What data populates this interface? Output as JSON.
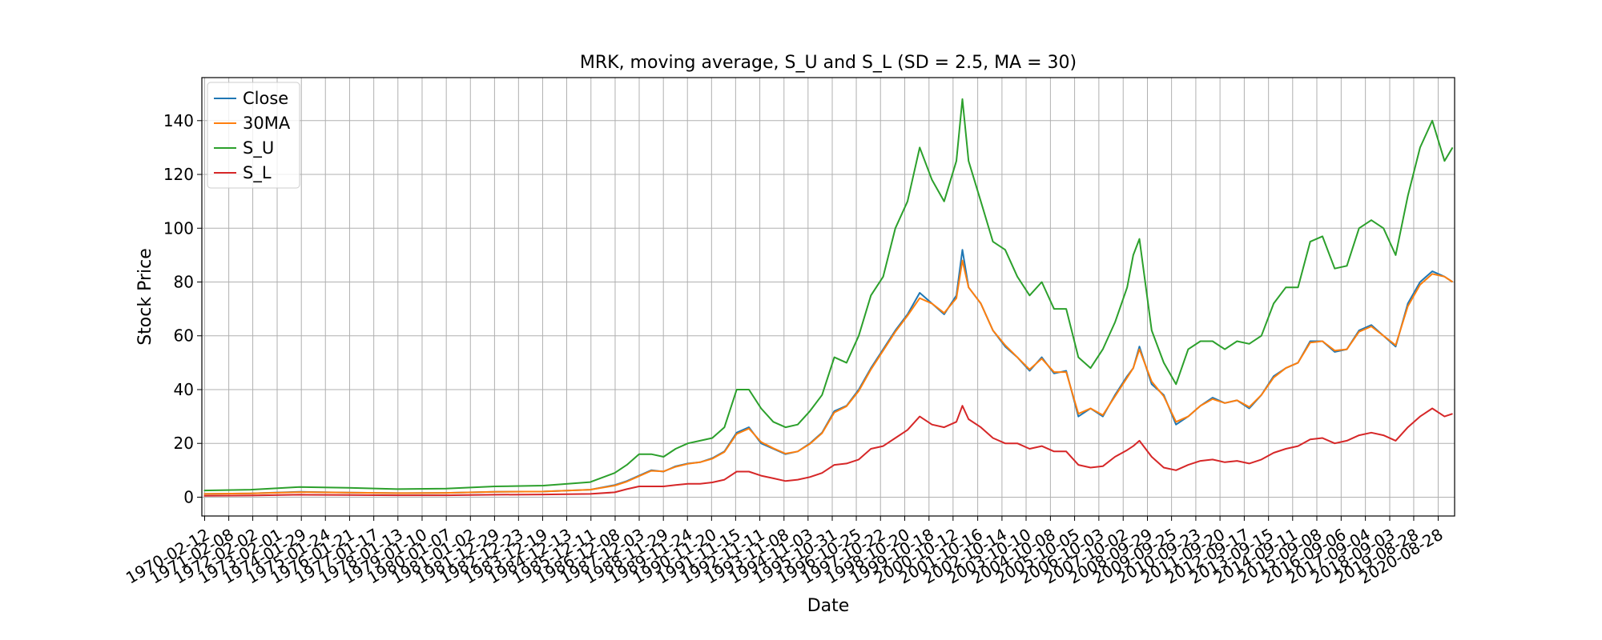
{
  "chart_data": {
    "type": "line",
    "title": "MRK, moving average, S_U and S_L (SD = 2.5, MA = 30)",
    "xlabel": "Date",
    "ylabel": "Stock Price",
    "ylim": [
      -7,
      156
    ],
    "yticks": [
      0,
      20,
      40,
      60,
      80,
      100,
      120,
      140
    ],
    "xlim": [
      "1970-01-01",
      "2021-05-01"
    ],
    "xticks": [
      "1970-02-12",
      "1971-02-08",
      "1972-02-02",
      "1973-02-01",
      "1974-01-29",
      "1975-01-24",
      "1976-01-21",
      "1977-01-17",
      "1978-01-13",
      "1979-01-10",
      "1980-01-07",
      "1981-01-02",
      "1981-12-29",
      "1982-12-23",
      "1983-12-19",
      "1984-12-13",
      "1985-12-11",
      "1986-12-08",
      "1987-12-03",
      "1988-11-29",
      "1989-11-24",
      "1990-11-20",
      "1991-11-15",
      "1992-11-11",
      "1993-11-08",
      "1994-11-03",
      "1995-10-31",
      "1996-10-25",
      "1997-10-22",
      "1998-10-20",
      "1999-10-18",
      "2000-10-12",
      "2001-10-16",
      "2002-10-14",
      "2003-10-10",
      "2004-10-08",
      "2005-10-05",
      "2006-10-03",
      "2007-10-02",
      "2008-09-29",
      "2009-09-25",
      "2010-09-23",
      "2011-09-20",
      "2012-09-17",
      "2013-09-15",
      "2014-09-11",
      "2015-09-08",
      "2016-09-06",
      "2017-09-04",
      "2018-09-03",
      "2019-08-28",
      "2020-08-28"
    ],
    "grid": true,
    "legend_position": "top-left",
    "series": [
      {
        "name": "Close",
        "color": "#1f77b4"
      },
      {
        "name": "30MA",
        "color": "#ff7f0e"
      },
      {
        "name": "S_U",
        "color": "#2ca02c"
      },
      {
        "name": "S_L",
        "color": "#d62728"
      }
    ],
    "x": [
      "1970-02",
      "1972-01",
      "1974-01",
      "1976-01",
      "1978-01",
      "1980-01",
      "1982-01",
      "1984-01",
      "1985-12",
      "1986-12",
      "1987-06",
      "1987-12",
      "1988-06",
      "1988-12",
      "1989-06",
      "1989-12",
      "1990-06",
      "1990-12",
      "1991-06",
      "1991-12",
      "1992-06",
      "1992-12",
      "1993-06",
      "1993-12",
      "1994-06",
      "1994-12",
      "1995-06",
      "1995-12",
      "1996-06",
      "1996-12",
      "1997-06",
      "1997-12",
      "1998-06",
      "1998-12",
      "1999-06",
      "1999-12",
      "2000-06",
      "2000-12",
      "2001-03",
      "2001-06",
      "2001-12",
      "2002-06",
      "2002-12",
      "2003-06",
      "2003-12",
      "2004-06",
      "2004-12",
      "2005-06",
      "2005-12",
      "2006-06",
      "2006-12",
      "2007-06",
      "2007-12",
      "2008-03",
      "2008-06",
      "2008-12",
      "2009-06",
      "2009-12",
      "2010-06",
      "2010-12",
      "2011-06",
      "2011-12",
      "2012-06",
      "2012-12",
      "2013-06",
      "2013-12",
      "2014-06",
      "2014-12",
      "2015-06",
      "2015-12",
      "2016-06",
      "2016-12",
      "2017-06",
      "2017-12",
      "2018-06",
      "2018-12",
      "2019-06",
      "2019-12",
      "2020-06",
      "2020-12",
      "2021-04"
    ],
    "close": [
      1.2,
      1.4,
      2.0,
      1.7,
      1.5,
      1.6,
      2.0,
      2.1,
      2.8,
      4.5,
      6.0,
      8.0,
      10.0,
      9.5,
      11.5,
      12.5,
      13.0,
      14.5,
      17.0,
      24.0,
      26.0,
      20.0,
      18.0,
      16.0,
      17.0,
      20.0,
      24.0,
      32.0,
      34.0,
      40.0,
      48.0,
      55.0,
      62.0,
      68.0,
      76.0,
      72.0,
      68.0,
      75.0,
      92.0,
      78.0,
      72.0,
      62.0,
      56.0,
      52.0,
      47.0,
      52.0,
      46.0,
      47.0,
      30.0,
      33.0,
      30.0,
      38.0,
      45.0,
      48.0,
      56.0,
      42.0,
      38.0,
      27.0,
      30.0,
      34.0,
      37.0,
      35.0,
      36.0,
      33.0,
      38.0,
      45.0,
      48.0,
      50.0,
      58.0,
      58.0,
      54.0,
      55.0,
      62.0,
      64.0,
      60.0,
      56.0,
      72.0,
      80.0,
      84.0,
      82.0,
      80.0
    ],
    "ma30": [
      1.2,
      1.4,
      1.9,
      1.7,
      1.5,
      1.6,
      2.0,
      2.1,
      2.8,
      4.3,
      5.8,
      7.8,
      9.8,
      9.6,
      11.3,
      12.4,
      13.0,
      14.3,
      16.8,
      23.5,
      25.5,
      20.5,
      18.2,
      16.2,
      17.0,
      19.8,
      23.8,
      31.5,
      33.8,
      39.5,
      47.5,
      54.5,
      61.5,
      67.5,
      74.0,
      72.0,
      68.5,
      74.0,
      88.0,
      78.0,
      72.0,
      62.0,
      56.5,
      52.0,
      47.5,
      51.5,
      46.5,
      46.5,
      31.0,
      33.0,
      30.5,
      37.5,
      44.5,
      48.0,
      55.0,
      43.0,
      37.5,
      28.0,
      30.0,
      34.0,
      36.5,
      35.0,
      36.0,
      33.5,
      38.0,
      44.5,
      48.0,
      50.0,
      57.5,
      58.0,
      54.5,
      55.0,
      61.5,
      63.5,
      60.0,
      56.5,
      71.0,
      79.0,
      83.0,
      82.0,
      80.0
    ],
    "s_u": [
      2.5,
      2.8,
      3.8,
      3.5,
      3.0,
      3.2,
      4.0,
      4.3,
      5.6,
      9.0,
      12.0,
      16.0,
      16.0,
      15.0,
      18.0,
      20.0,
      21.0,
      22.0,
      26.0,
      40.0,
      40.0,
      33.0,
      28.0,
      26.0,
      27.0,
      32.0,
      38.0,
      52.0,
      50.0,
      60.0,
      75.0,
      82.0,
      100.0,
      110.0,
      130.0,
      118.0,
      110.0,
      125.0,
      148.0,
      125.0,
      110.0,
      95.0,
      92.0,
      82.0,
      75.0,
      80.0,
      70.0,
      70.0,
      52.0,
      48.0,
      55.0,
      65.0,
      78.0,
      90.0,
      96.0,
      62.0,
      50.0,
      42.0,
      55.0,
      58.0,
      58.0,
      55.0,
      58.0,
      57.0,
      60.0,
      72.0,
      78.0,
      78.0,
      95.0,
      97.0,
      85.0,
      86.0,
      100.0,
      103.0,
      100.0,
      90.0,
      112.0,
      130.0,
      140.0,
      125.0,
      130.0
    ],
    "s_l": [
      0.5,
      0.6,
      0.9,
      0.8,
      0.7,
      0.7,
      0.9,
      1.0,
      1.2,
      1.8,
      3.0,
      4.0,
      4.0,
      4.0,
      4.5,
      5.0,
      5.0,
      5.5,
      6.5,
      9.5,
      9.5,
      8.0,
      7.0,
      6.0,
      6.5,
      7.5,
      9.0,
      12.0,
      12.5,
      14.0,
      18.0,
      19.0,
      22.0,
      25.0,
      30.0,
      27.0,
      26.0,
      28.0,
      34.0,
      29.0,
      26.0,
      22.0,
      20.0,
      20.0,
      18.0,
      19.0,
      17.0,
      17.0,
      12.0,
      11.0,
      11.5,
      15.0,
      17.5,
      19.0,
      21.0,
      15.0,
      11.0,
      10.0,
      12.0,
      13.5,
      14.0,
      13.0,
      13.5,
      12.5,
      14.0,
      16.5,
      18.0,
      19.0,
      21.5,
      22.0,
      20.0,
      21.0,
      23.0,
      24.0,
      23.0,
      21.0,
      26.0,
      30.0,
      33.0,
      30.0,
      31.0
    ]
  }
}
